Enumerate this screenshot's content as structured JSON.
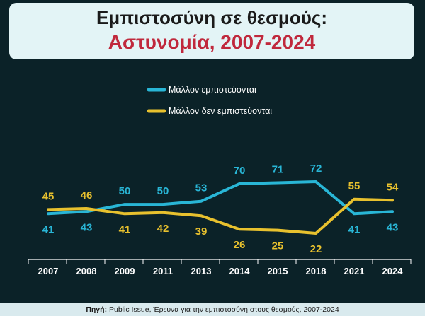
{
  "title": {
    "line1": "Εμπιστοσύνη σε θεσμούς:",
    "line2": "Αστυνομία, 2007-2024"
  },
  "source": {
    "prefix": "Πηγή:",
    "text": "Public Issue, Έρευνα για την εμπιστοσύνη στους θεσμούς, 2007-2024"
  },
  "colors": {
    "trust": "#29b6d6",
    "distrust": "#e8c12e",
    "background": "#0b2228"
  },
  "chart_data": {
    "type": "line",
    "categories": [
      "2007",
      "2008",
      "2009",
      "2011",
      "2013",
      "2014",
      "2015",
      "2018",
      "2021",
      "2024"
    ],
    "series": [
      {
        "name": "Μάλλον εμπιστεύονται",
        "values": [
          41,
          43,
          50,
          50,
          53,
          70,
          71,
          72,
          41,
          43
        ]
      },
      {
        "name": "Μάλλον δεν εμπιστεύονται",
        "values": [
          45,
          46,
          41,
          42,
          39,
          26,
          25,
          22,
          55,
          54
        ]
      }
    ],
    "legend_position": "top",
    "grid": false
  }
}
